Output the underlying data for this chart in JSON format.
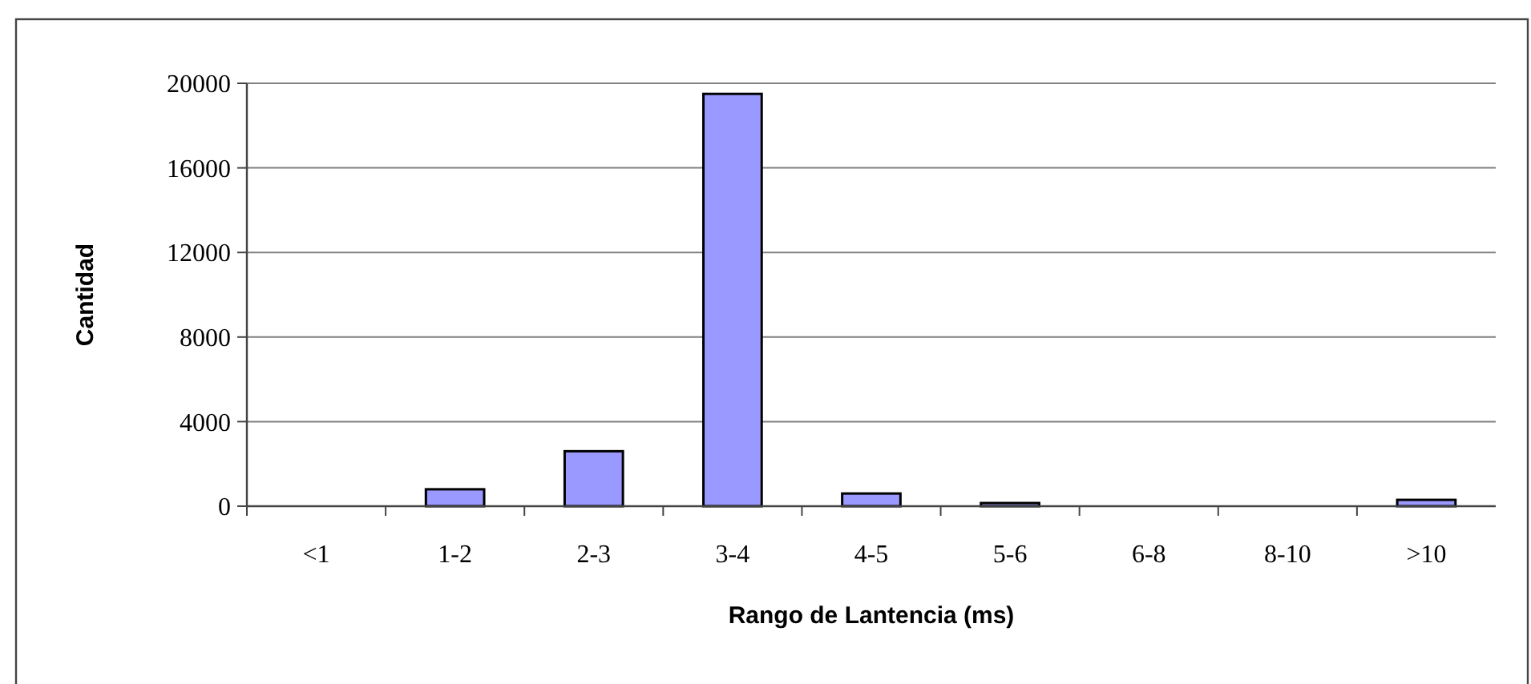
{
  "chart_data": {
    "type": "bar",
    "xlabel": "Rango de Lantencia (ms)",
    "ylabel": "Cantidad",
    "categories": [
      "<1",
      "1-2",
      "2-3",
      "3-4",
      "4-5",
      "5-6",
      "6-8",
      "8-10",
      ">10"
    ],
    "values": [
      0,
      800,
      2600,
      19500,
      600,
      150,
      0,
      0,
      300
    ],
    "color": "#9999ff",
    "ylim": [
      0,
      20000
    ],
    "yticks": [
      0,
      4000,
      8000,
      12000,
      16000,
      20000
    ],
    "grid": "y"
  }
}
